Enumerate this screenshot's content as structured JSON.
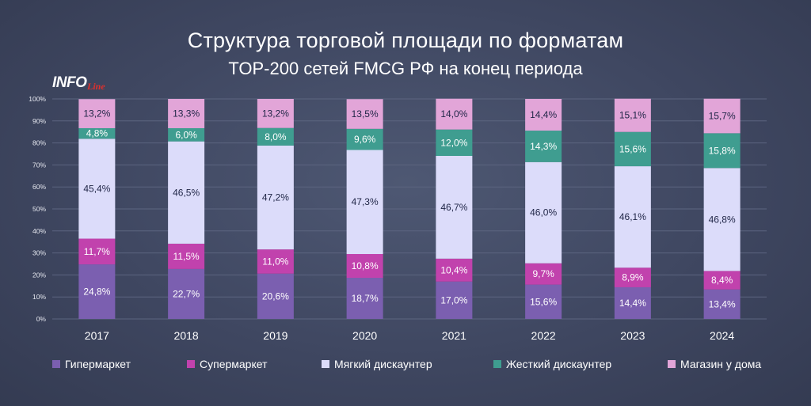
{
  "header": {
    "title": "Структура торговой площади по форматам",
    "subtitle": "TOP-200 сетей FMCG РФ на конец периода"
  },
  "logo": {
    "main": "INFO",
    "script": "Line"
  },
  "colors": {
    "hypermarket": "#7b5fb0",
    "supermarket": "#c142ad",
    "soft_discounter": "#dcdcfa",
    "hard_discounter": "#3f9d90",
    "convenience": "#e2a5d8",
    "gridline": "#5c6580",
    "label_dark": "#1f2546",
    "label_light": "#ffffff"
  },
  "chart_data": {
    "type": "bar",
    "stacked": true,
    "title": "Структура торговой площади по форматам",
    "subtitle": "TOP-200 сетей FMCG РФ на конец периода",
    "categories": [
      "2017",
      "2018",
      "2019",
      "2020",
      "2021",
      "2022",
      "2023",
      "2024"
    ],
    "ylim": [
      0,
      100
    ],
    "yticks": [
      "0%",
      "10%",
      "20%",
      "30%",
      "40%",
      "50%",
      "60%",
      "70%",
      "80%",
      "90%",
      "100%"
    ],
    "legend_position": "bottom",
    "series": [
      {
        "key": "hypermarket",
        "name": "Гипермаркет",
        "values": [
          24.8,
          22.7,
          20.6,
          18.7,
          17.0,
          15.6,
          14.4,
          13.4
        ],
        "labels": [
          "24,8%",
          "22,7%",
          "20,6%",
          "18,7%",
          "17,0%",
          "15,6%",
          "14,4%",
          "13,4%"
        ]
      },
      {
        "key": "supermarket",
        "name": "Супермаркет",
        "values": [
          11.7,
          11.5,
          11.0,
          10.8,
          10.4,
          9.7,
          8.9,
          8.4
        ],
        "labels": [
          "11,7%",
          "11,5%",
          "11,0%",
          "10,8%",
          "10,4%",
          "9,7%",
          "8,9%",
          "8,4%"
        ]
      },
      {
        "key": "soft_discounter",
        "name": "Мягкий дискаунтер",
        "values": [
          45.4,
          46.5,
          47.2,
          47.3,
          46.7,
          46.0,
          46.1,
          46.8
        ],
        "labels": [
          "45,4%",
          "46,5%",
          "47,2%",
          "47,3%",
          "46,7%",
          "46,0%",
          "46,1%",
          "46,8%"
        ]
      },
      {
        "key": "hard_discounter",
        "name": "Жесткий дискаунтер",
        "values": [
          4.8,
          6.0,
          8.0,
          9.6,
          12.0,
          14.3,
          15.6,
          15.8
        ],
        "labels": [
          "4,8%",
          "6,0%",
          "8,0%",
          "9,6%",
          "12,0%",
          "14,3%",
          "15,6%",
          "15,8%"
        ]
      },
      {
        "key": "convenience",
        "name": "Магазин у дома",
        "values": [
          13.2,
          13.3,
          13.2,
          13.5,
          14.0,
          14.4,
          15.1,
          15.7
        ],
        "labels": [
          "13,2%",
          "13,3%",
          "13,2%",
          "13,5%",
          "14,0%",
          "14,4%",
          "15,1%",
          "15,7%"
        ]
      }
    ]
  }
}
